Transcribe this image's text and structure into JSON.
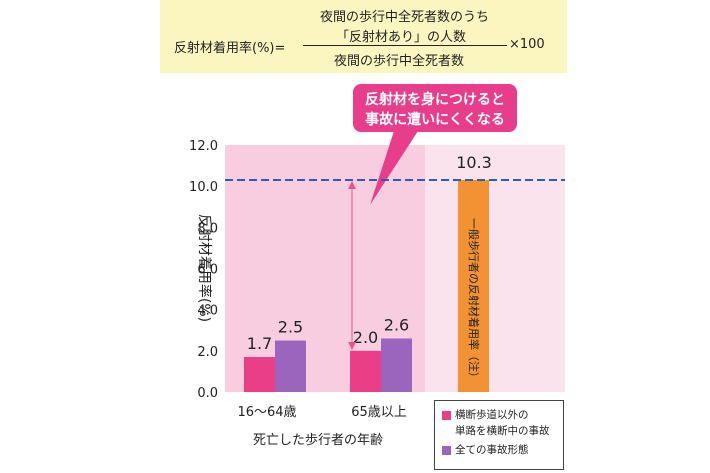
{
  "formula": {
    "lhs": "反射材着用率(%)=",
    "numerator_line1": "夜間の歩行中全死者数のうち",
    "numerator_line2": "「反射材あり」の人数",
    "denominator": "夜間の歩行中全死者数",
    "multiplier": "×100"
  },
  "callout": {
    "line1": "反射材を身につけると",
    "line2": "事故に遭いにくくなる"
  },
  "colors": {
    "series_crossing": "#ea3f86",
    "series_all": "#9b65bd",
    "general_bar": "#f29233",
    "reference_line": "#2e5fa8",
    "callout": "#e83d8a",
    "plot_bg": "#f9cde0",
    "formula_bg": "#fbf6c0"
  },
  "chart_data": {
    "type": "bar",
    "ylabel": "反射材着用率(%)",
    "xlabel": "死亡した歩行者の年齢",
    "ylim": [
      0,
      12
    ],
    "yticks": [
      "0.0",
      "2.0",
      "4.0",
      "6.0",
      "8.0",
      "10.0",
      "12.0"
    ],
    "categories": [
      "16〜64歳",
      "65歳以上"
    ],
    "series": [
      {
        "name": "横断歩道以外の単路を横断中の事故",
        "values": [
          1.7,
          2.0
        ],
        "labels": [
          "1.7",
          "2.0"
        ]
      },
      {
        "name": "全ての事故形態",
        "values": [
          2.5,
          2.6
        ],
        "labels": [
          "2.5",
          "2.6"
        ]
      }
    ],
    "reference": {
      "name": "一般歩行者の反射材着用率（注）",
      "value": 10.3,
      "label": "10.3",
      "style": "dashed"
    },
    "grid": false,
    "legend_position": "bottom-right"
  },
  "legend": {
    "items": [
      {
        "line1": "横断歩道以外の",
        "line2": "単路を横断中の事故"
      },
      {
        "line1": "全ての事故形態",
        "line2": ""
      }
    ]
  }
}
